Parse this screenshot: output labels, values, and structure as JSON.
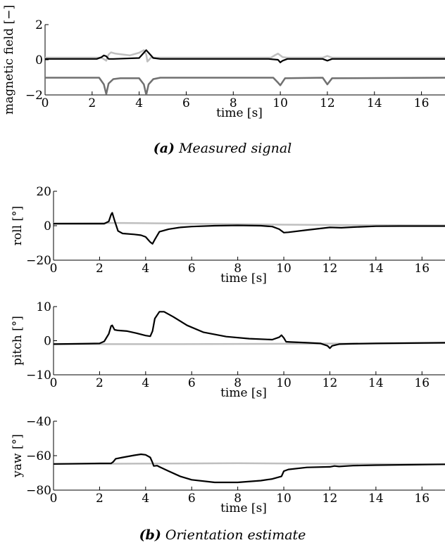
{
  "captions": {
    "a_tag": "(a)",
    "a_text": "Measured signal",
    "b_tag": "(b)",
    "b_text": "Orientation estimate"
  },
  "chart_data": [
    {
      "id": "magnetic",
      "type": "line",
      "xlabel": "time [s]",
      "ylabel": "magnetic field [−]",
      "xlim": [
        0,
        17
      ],
      "ylim": [
        -2,
        2
      ],
      "xticks": [
        0,
        2,
        4,
        6,
        8,
        10,
        12,
        14,
        16
      ],
      "yticks": [
        -2,
        0,
        2
      ],
      "yticklabels": [
        "−2",
        "0",
        "2"
      ],
      "series": [
        {
          "color": "#000000",
          "width": 2.2,
          "x": [
            0,
            2.2,
            2.4,
            2.5,
            2.6,
            2.7,
            2.9,
            4.0,
            4.2,
            4.3,
            4.4,
            4.6,
            4.9,
            9.5,
            9.9,
            10.0,
            10.1,
            10.3,
            11.8,
            12.0,
            12.2,
            17
          ],
          "y": [
            0.05,
            0.05,
            0.15,
            0.25,
            0.2,
            0.05,
            0.05,
            0.1,
            0.4,
            0.55,
            0.4,
            0.1,
            0.05,
            0.05,
            0.0,
            -0.15,
            -0.05,
            0.05,
            0.05,
            -0.05,
            0.05,
            0.05
          ]
        },
        {
          "color": "#bfbfbf",
          "width": 2.5,
          "x": [
            0,
            2.4,
            2.6,
            2.7,
            2.8,
            3.0,
            3.6,
            4.0,
            4.2,
            4.3,
            4.35,
            4.5,
            5.0,
            9.6,
            9.8,
            9.9,
            10.1,
            10.3,
            11.8,
            12.0,
            12.2,
            17
          ],
          "y": [
            0.12,
            0.12,
            -0.05,
            0.3,
            0.42,
            0.35,
            0.25,
            0.4,
            0.55,
            0.3,
            -0.1,
            0.12,
            0.12,
            0.12,
            0.28,
            0.35,
            0.15,
            0.12,
            0.12,
            0.22,
            0.12,
            0.12
          ]
        },
        {
          "color": "#707070",
          "width": 2.5,
          "x": [
            0,
            2.3,
            2.5,
            2.6,
            2.7,
            2.9,
            3.2,
            4.0,
            4.2,
            4.3,
            4.4,
            4.6,
            4.9,
            9.7,
            9.9,
            10.0,
            10.2,
            11.8,
            12.0,
            12.2,
            17
          ],
          "y": [
            -1.02,
            -1.02,
            -1.4,
            -1.95,
            -1.35,
            -1.1,
            -1.05,
            -1.05,
            -1.4,
            -2.0,
            -1.4,
            -1.1,
            -1.02,
            -1.02,
            -1.3,
            -1.45,
            -1.05,
            -1.02,
            -1.4,
            -1.05,
            -1.02
          ]
        }
      ]
    },
    {
      "id": "roll",
      "type": "line",
      "xlabel": "time [s]",
      "ylabel": "roll [°]",
      "xlim": [
        0,
        17
      ],
      "ylim": [
        -20,
        20
      ],
      "xticks": [
        0,
        2,
        4,
        6,
        8,
        10,
        12,
        14,
        16
      ],
      "yticks": [
        -20,
        0,
        20
      ],
      "yticklabels": [
        "−20",
        "0",
        "20"
      ],
      "series": [
        {
          "color": "#000000",
          "width": 2.2,
          "x": [
            0,
            2.2,
            2.4,
            2.5,
            2.55,
            2.65,
            2.8,
            3.0,
            3.5,
            3.8,
            4.0,
            4.2,
            4.3,
            4.4,
            4.6,
            5.0,
            5.5,
            6.0,
            7.0,
            8.0,
            9.0,
            9.5,
            9.8,
            10.0,
            10.2,
            11.0,
            12.0,
            12.5,
            13.0,
            14.0,
            15.0,
            17
          ],
          "y": [
            1.2,
            1.2,
            2.5,
            6.5,
            7.5,
            3.0,
            -3.0,
            -4.5,
            -5.0,
            -5.5,
            -6.5,
            -9.5,
            -10.5,
            -8.0,
            -3.5,
            -2.0,
            -1.0,
            -0.5,
            0.0,
            0.2,
            0.0,
            -0.5,
            -2.0,
            -4.0,
            -3.8,
            -2.5,
            -1.0,
            -1.2,
            -0.8,
            -0.3,
            -0.2,
            -0.2
          ]
        },
        {
          "color": "#bfbfbf",
          "width": 2.5,
          "x": [
            0,
            2.0,
            3.0,
            6.0,
            10.0,
            14.0,
            17
          ],
          "y": [
            1.4,
            1.6,
            1.6,
            1.2,
            0.6,
            0.3,
            0.2
          ]
        }
      ]
    },
    {
      "id": "pitch",
      "type": "line",
      "xlabel": "time [s]",
      "ylabel": "pitch [°]",
      "xlim": [
        0,
        17
      ],
      "ylim": [
        -10,
        10
      ],
      "xticks": [
        0,
        2,
        4,
        6,
        8,
        10,
        12,
        14,
        16
      ],
      "yticks": [
        -10,
        0,
        10
      ],
      "yticklabels": [
        "−10",
        "0",
        "10"
      ],
      "series": [
        {
          "color": "#000000",
          "width": 2.2,
          "x": [
            0,
            2.0,
            2.2,
            2.4,
            2.5,
            2.55,
            2.65,
            2.8,
            3.2,
            3.6,
            4.0,
            4.2,
            4.3,
            4.4,
            4.6,
            4.8,
            5.2,
            5.8,
            6.5,
            7.5,
            8.5,
            9.5,
            9.8,
            9.9,
            10.0,
            10.1,
            10.3,
            11.0,
            11.6,
            11.9,
            12.0,
            12.1,
            12.4,
            13.0,
            14.0,
            17
          ],
          "y": [
            -1.0,
            -0.8,
            -0.2,
            2.0,
            4.3,
            4.5,
            3.2,
            3.0,
            2.8,
            2.2,
            1.5,
            1.3,
            2.8,
            6.5,
            8.5,
            8.5,
            7.0,
            4.5,
            2.5,
            1.2,
            0.6,
            0.3,
            1.0,
            1.6,
            0.8,
            -0.3,
            -0.4,
            -0.6,
            -0.8,
            -1.5,
            -2.2,
            -1.5,
            -1.0,
            -0.9,
            -0.8,
            -0.6
          ]
        },
        {
          "color": "#bfbfbf",
          "width": 2.5,
          "x": [
            0,
            5.0,
            10.0,
            14.0,
            17
          ],
          "y": [
            -1.0,
            -1.0,
            -0.9,
            -0.8,
            -0.7
          ]
        }
      ]
    },
    {
      "id": "yaw",
      "type": "line",
      "xlabel": "time [s]",
      "ylabel": "yaw [°]",
      "xlim": [
        0,
        17
      ],
      "ylim": [
        -80,
        -40
      ],
      "xticks": [
        0,
        2,
        4,
        6,
        8,
        10,
        12,
        14,
        16
      ],
      "yticks": [
        -80,
        -60,
        -40
      ],
      "yticklabels": [
        "−80",
        "−60",
        "−40"
      ],
      "series": [
        {
          "color": "#000000",
          "width": 2.2,
          "x": [
            0,
            2.0,
            2.5,
            2.6,
            2.7,
            3.0,
            3.5,
            3.8,
            4.0,
            4.2,
            4.3,
            4.35,
            4.5,
            4.6,
            5.0,
            5.5,
            6.0,
            7.0,
            8.0,
            9.0,
            9.5,
            9.9,
            10.0,
            10.2,
            11.0,
            12.0,
            12.2,
            12.4,
            13.0,
            14.0,
            17
          ],
          "y": [
            -64.8,
            -64.5,
            -64.5,
            -63.5,
            -61.8,
            -61.0,
            -59.8,
            -59.2,
            -59.5,
            -61.0,
            -64.0,
            -66.0,
            -65.8,
            -66.5,
            -69.0,
            -72.0,
            -74.0,
            -75.5,
            -75.5,
            -74.5,
            -73.5,
            -72.0,
            -69.0,
            -68.0,
            -66.8,
            -66.5,
            -66.0,
            -66.3,
            -65.8,
            -65.5,
            -65.0
          ]
        },
        {
          "color": "#bfbfbf",
          "width": 2.5,
          "x": [
            0,
            4.0,
            8.0,
            12.0,
            17
          ],
          "y": [
            -64.8,
            -64.6,
            -64.4,
            -64.7,
            -65.0
          ]
        }
      ]
    }
  ]
}
